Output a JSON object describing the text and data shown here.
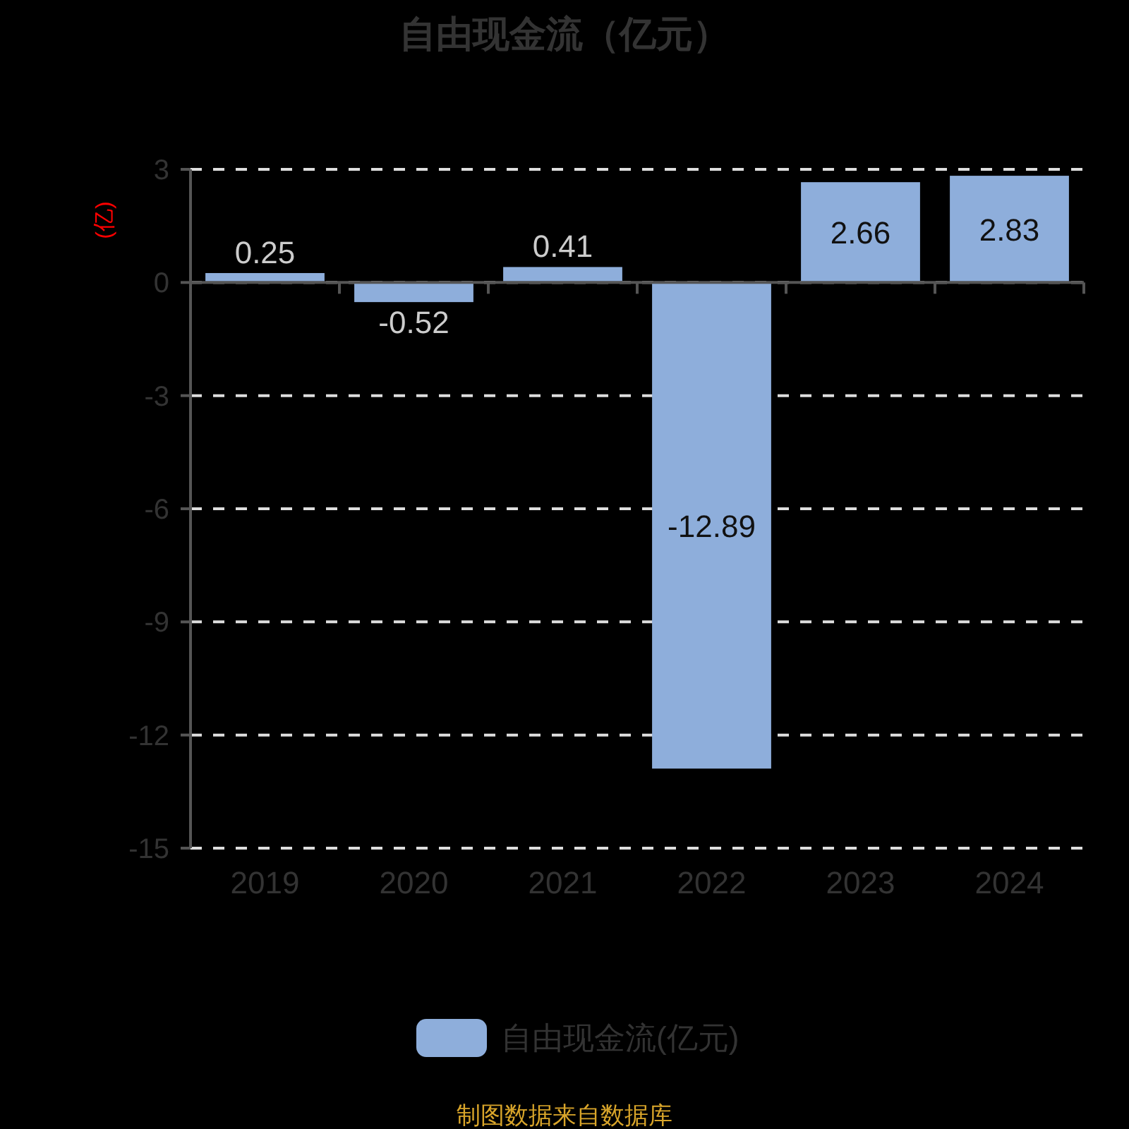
{
  "chart_data": {
    "type": "bar",
    "title": "自由现金流（亿元）",
    "ylabel": "(亿)",
    "categories": [
      "2019",
      "2020",
      "2021",
      "2022",
      "2023",
      "2024"
    ],
    "series": [
      {
        "name": "自由现金流(亿元)",
        "color": "#8eaedb",
        "values": [
          0.25,
          -0.52,
          0.41,
          -12.89,
          2.66,
          2.83
        ]
      }
    ],
    "ylim": [
      -15,
      3
    ],
    "yticks": [
      -15,
      -12,
      -9,
      -6,
      -3,
      0,
      3
    ],
    "grid": "y",
    "legend": "bottom",
    "data_labels": true,
    "annotations": [
      "制图数据来自数据库"
    ]
  }
}
